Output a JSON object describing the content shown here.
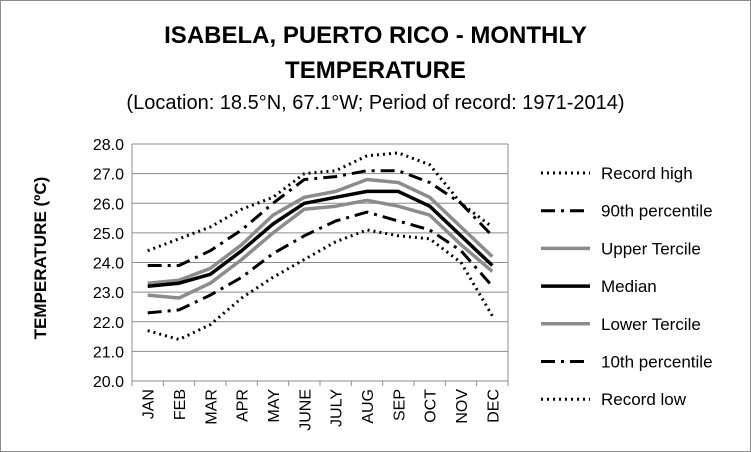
{
  "chart_data": {
    "type": "line",
    "title": "ISABELA, PUERTO RICO - MONTHLY TEMPERATURE",
    "title_lines": [
      "ISABELA, PUERTO RICO - MONTHLY",
      "TEMPERATURE"
    ],
    "subtitle": "(Location: 18.5°N, 67.1°W; Period of record: 1971-2014)",
    "xlabel": "",
    "ylabel": "TEMPERATURE (ºC)",
    "categories": [
      "JAN",
      "FEB",
      "MAR",
      "APR",
      "MAY",
      "JUNE",
      "JULY",
      "AUG",
      "SEP",
      "OCT",
      "NOV",
      "DEC"
    ],
    "ylim": [
      20.0,
      28.0
    ],
    "yticks": [
      "20.0",
      "21.0",
      "22.0",
      "23.0",
      "24.0",
      "25.0",
      "26.0",
      "27.0",
      "28.0"
    ],
    "grid": true,
    "legend_position": "right",
    "series": [
      {
        "name": "Record high",
        "style": "dotted",
        "color": "#000000",
        "values": [
          24.4,
          24.8,
          25.2,
          25.8,
          26.2,
          27.0,
          27.1,
          27.6,
          27.7,
          27.3,
          26.0,
          25.2
        ]
      },
      {
        "name": "90th percentile",
        "style": "dashdot",
        "color": "#000000",
        "values": [
          23.9,
          23.9,
          24.4,
          25.1,
          26.0,
          26.8,
          26.9,
          27.1,
          27.1,
          26.7,
          26.0,
          24.9
        ]
      },
      {
        "name": "Upper Tercile",
        "style": "solid",
        "color": "#8c8c8c",
        "values": [
          23.3,
          23.4,
          23.8,
          24.6,
          25.6,
          26.2,
          26.4,
          26.8,
          26.7,
          26.2,
          25.2,
          24.2
        ]
      },
      {
        "name": "Median",
        "style": "solid",
        "color": "#000000",
        "values": [
          23.2,
          23.3,
          23.6,
          24.4,
          25.3,
          26.0,
          26.2,
          26.4,
          26.4,
          25.9,
          24.9,
          23.9
        ]
      },
      {
        "name": "Lower Tercile",
        "style": "solid",
        "color": "#8c8c8c",
        "values": [
          22.9,
          22.8,
          23.3,
          24.1,
          25.0,
          25.8,
          25.9,
          26.1,
          25.9,
          25.6,
          24.6,
          23.7
        ]
      },
      {
        "name": "10th percentile",
        "style": "dashdot",
        "color": "#000000",
        "values": [
          22.3,
          22.4,
          22.9,
          23.5,
          24.3,
          24.9,
          25.4,
          25.7,
          25.4,
          25.1,
          24.4,
          23.2
        ]
      },
      {
        "name": "Record low",
        "style": "dotted",
        "color": "#000000",
        "values": [
          21.7,
          21.4,
          21.9,
          22.8,
          23.5,
          24.1,
          24.7,
          25.1,
          24.9,
          24.8,
          24.0,
          22.2
        ]
      }
    ]
  }
}
